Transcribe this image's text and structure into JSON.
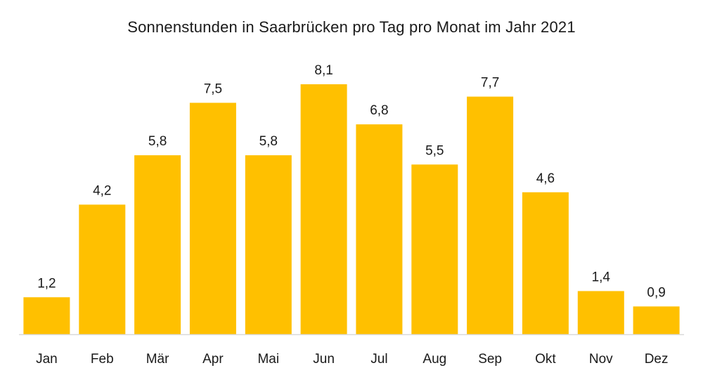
{
  "chart_data": {
    "type": "bar",
    "title": "Sonnenstunden in Saarbrücken pro Tag pro Monat im Jahr 2021",
    "categories": [
      "Jan",
      "Feb",
      "Mär",
      "Apr",
      "Mai",
      "Jun",
      "Jul",
      "Aug",
      "Sep",
      "Okt",
      "Nov",
      "Dez"
    ],
    "values": [
      1.2,
      4.2,
      5.8,
      7.5,
      5.8,
      8.1,
      6.8,
      5.5,
      7.7,
      4.6,
      1.4,
      0.9
    ],
    "value_labels": [
      "1,2",
      "4,2",
      "5,8",
      "7,5",
      "5,8",
      "8,1",
      "6,8",
      "5,5",
      "7,7",
      "4,6",
      "1,4",
      "0,9"
    ],
    "xlabel": "",
    "ylabel": "",
    "ylim": [
      0,
      8.1
    ],
    "grid": false,
    "colors": {
      "bar": "#FFC000",
      "axis": "#d9d9d9"
    }
  }
}
